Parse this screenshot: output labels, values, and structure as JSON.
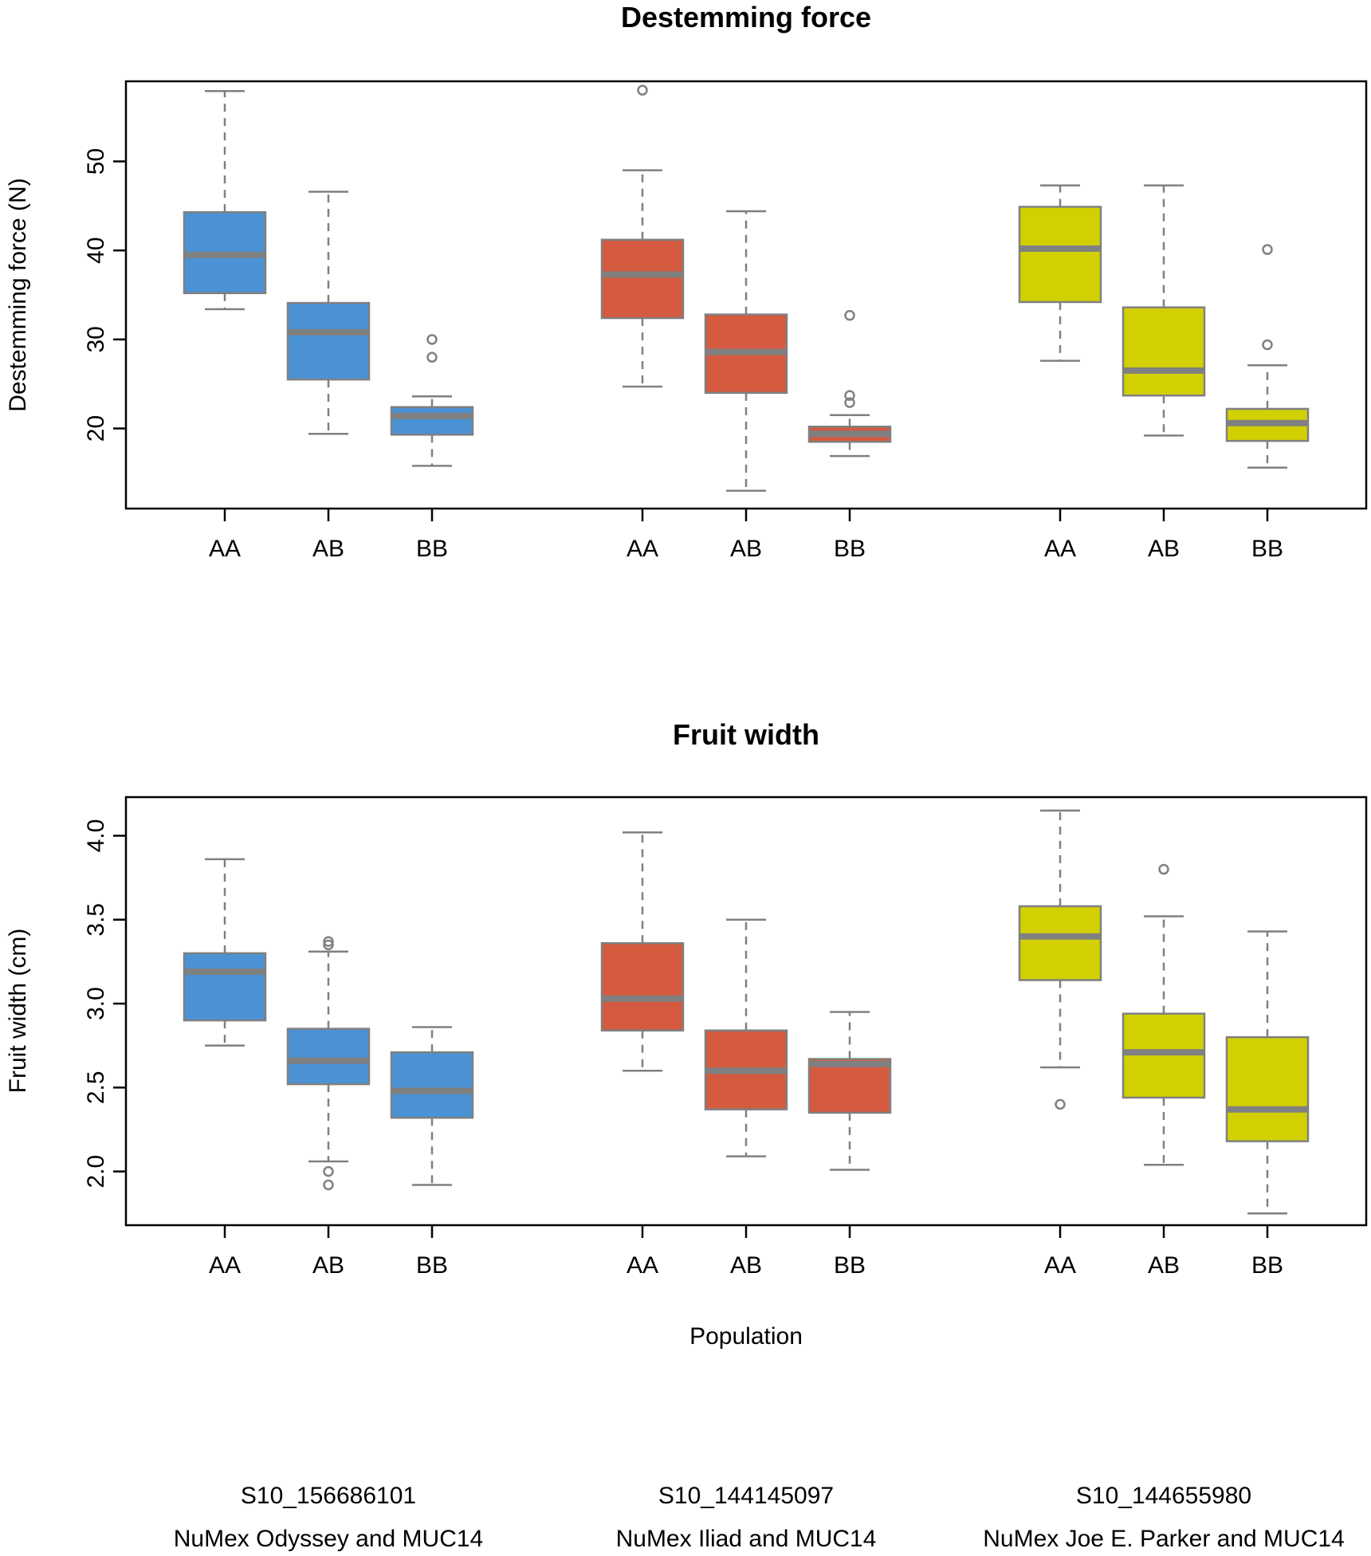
{
  "chart_data": [
    {
      "type": "boxplot",
      "title": "Destemming force",
      "ylabel": "Destemming force (N)",
      "xlabel": "",
      "ylim": [
        11,
        59
      ],
      "yticks": [
        20,
        30,
        40,
        50
      ],
      "ytick_labels": [
        "20",
        "30",
        "40",
        "50"
      ],
      "categories": [
        "AA",
        "AB",
        "BB",
        "AA",
        "AB",
        "BB",
        "AA",
        "AB",
        "BB"
      ],
      "boxes": [
        {
          "genotype": "AA",
          "group": 0,
          "color": "#4b92d4",
          "min": 33.4,
          "q1": 35.2,
          "median": 39.5,
          "q3": 44.3,
          "max": 57.9,
          "outliers": []
        },
        {
          "genotype": "AB",
          "group": 0,
          "color": "#4b92d4",
          "min": 19.4,
          "q1": 25.5,
          "median": 30.8,
          "q3": 34.1,
          "max": 46.6,
          "outliers": []
        },
        {
          "genotype": "BB",
          "group": 0,
          "color": "#4b92d4",
          "min": 15.8,
          "q1": 19.3,
          "median": 21.4,
          "q3": 22.4,
          "max": 23.6,
          "outliers": [
            28.0,
            30.0
          ]
        },
        {
          "genotype": "AA",
          "group": 1,
          "color": "#d45a40",
          "min": 24.7,
          "q1": 32.4,
          "median": 37.3,
          "q3": 41.2,
          "max": 49.0,
          "outliers": [
            58.0
          ]
        },
        {
          "genotype": "AB",
          "group": 1,
          "color": "#d45a40",
          "min": 13.0,
          "q1": 24.0,
          "median": 28.6,
          "q3": 32.8,
          "max": 44.4,
          "outliers": []
        },
        {
          "genotype": "BB",
          "group": 1,
          "color": "#d45a40",
          "min": 16.9,
          "q1": 18.5,
          "median": 19.4,
          "q3": 20.2,
          "max": 21.5,
          "outliers": [
            22.9,
            23.7,
            32.7
          ]
        },
        {
          "genotype": "AA",
          "group": 2,
          "color": "#d2d000",
          "min": 27.6,
          "q1": 34.2,
          "median": 40.2,
          "q3": 44.9,
          "max": 47.3,
          "outliers": []
        },
        {
          "genotype": "AB",
          "group": 2,
          "color": "#d2d000",
          "min": 19.2,
          "q1": 23.7,
          "median": 26.5,
          "q3": 33.6,
          "max": 47.3,
          "outliers": []
        },
        {
          "genotype": "BB",
          "group": 2,
          "color": "#d2d000",
          "min": 15.6,
          "q1": 18.6,
          "median": 20.6,
          "q3": 22.2,
          "max": 27.1,
          "outliers": [
            29.4,
            40.1
          ]
        }
      ]
    },
    {
      "type": "boxplot",
      "title": "Fruit width",
      "ylabel": "Fruit width (cm)",
      "xlabel": "Population",
      "ylim": [
        1.68,
        4.23
      ],
      "yticks": [
        2.0,
        2.5,
        3.0,
        3.5,
        4.0
      ],
      "ytick_labels": [
        "2.0",
        "2.5",
        "3.0",
        "3.5",
        "4.0"
      ],
      "categories": [
        "AA",
        "AB",
        "BB",
        "AA",
        "AB",
        "BB",
        "AA",
        "AB",
        "BB"
      ],
      "boxes": [
        {
          "genotype": "AA",
          "group": 0,
          "color": "#4b92d4",
          "min": 2.75,
          "q1": 2.9,
          "median": 3.19,
          "q3": 3.3,
          "max": 3.86,
          "outliers": []
        },
        {
          "genotype": "AB",
          "group": 0,
          "color": "#4b92d4",
          "min": 2.06,
          "q1": 2.52,
          "median": 2.66,
          "q3": 2.85,
          "max": 3.31,
          "outliers": [
            1.92,
            2.0,
            3.35,
            3.37
          ]
        },
        {
          "genotype": "BB",
          "group": 0,
          "color": "#4b92d4",
          "min": 1.92,
          "q1": 2.32,
          "median": 2.48,
          "q3": 2.71,
          "max": 2.86,
          "outliers": []
        },
        {
          "genotype": "AA",
          "group": 1,
          "color": "#d45a40",
          "min": 2.6,
          "q1": 2.84,
          "median": 3.03,
          "q3": 3.36,
          "max": 4.02,
          "outliers": []
        },
        {
          "genotype": "AB",
          "group": 1,
          "color": "#d45a40",
          "min": 2.09,
          "q1": 2.37,
          "median": 2.6,
          "q3": 2.84,
          "max": 3.5,
          "outliers": []
        },
        {
          "genotype": "BB",
          "group": 1,
          "color": "#d45a40",
          "min": 2.01,
          "q1": 2.35,
          "median": 2.64,
          "q3": 2.67,
          "max": 2.95,
          "outliers": []
        },
        {
          "genotype": "AA",
          "group": 2,
          "color": "#d2d000",
          "min": 2.62,
          "q1": 3.14,
          "median": 3.4,
          "q3": 3.58,
          "max": 4.15,
          "outliers": [
            2.4
          ]
        },
        {
          "genotype": "AB",
          "group": 2,
          "color": "#d2d000",
          "min": 2.04,
          "q1": 2.44,
          "median": 2.71,
          "q3": 2.94,
          "max": 3.52,
          "outliers": [
            3.8
          ]
        },
        {
          "genotype": "BB",
          "group": 2,
          "color": "#d2d000",
          "min": 1.75,
          "q1": 2.18,
          "median": 2.37,
          "q3": 2.8,
          "max": 3.43,
          "outliers": []
        }
      ]
    }
  ],
  "groups": [
    {
      "marker": "S10_156686101",
      "population": "NuMex Odyssey and MUC14",
      "color": "#4b92d4"
    },
    {
      "marker": "S10_144145097",
      "population": "NuMex Iliad and MUC14",
      "color": "#d45a40"
    },
    {
      "marker": "S10_144655980",
      "population": "NuMex Joe E. Parker and MUC14",
      "color": "#d2d000"
    }
  ]
}
